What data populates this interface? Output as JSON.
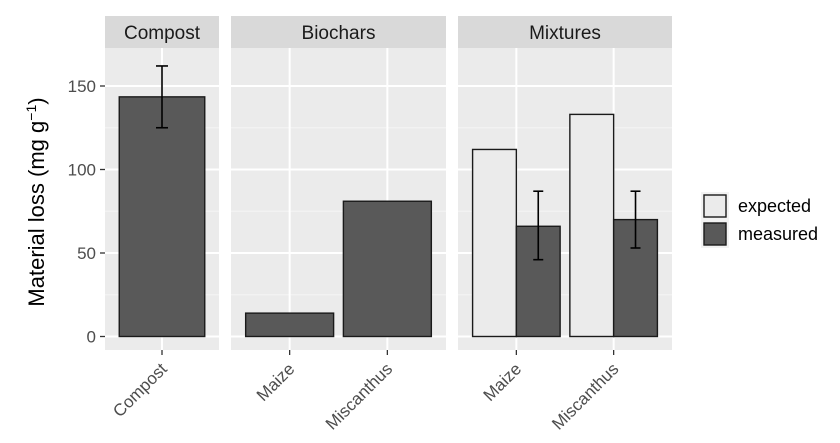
{
  "chart_data": {
    "type": "bar",
    "ylabel": "Material loss (mg g",
    "ylabel_superscript": "−1",
    "ylabel_close": ")",
    "ylim": [
      0,
      170
    ],
    "yticks": [
      "0",
      "50",
      "100",
      "150"
    ],
    "grid": true,
    "legend_position": "right",
    "series": [
      {
        "name": "expected",
        "color": "#ebebeb"
      },
      {
        "name": "measured",
        "color": "#595959"
      }
    ],
    "panels": [
      {
        "title": "Compost",
        "categories": [
          "Compost"
        ],
        "bars": [
          {
            "category": "Compost",
            "series": "measured",
            "value": 143.5,
            "err_low": 125,
            "err_high": 162
          }
        ]
      },
      {
        "title": "Biochars",
        "categories": [
          "Maize",
          "Miscanthus"
        ],
        "bars": [
          {
            "category": "Maize",
            "series": "measured",
            "value": 14
          },
          {
            "category": "Miscanthus",
            "series": "measured",
            "value": 81
          }
        ]
      },
      {
        "title": "Mixtures",
        "categories": [
          "Maize",
          "Miscanthus"
        ],
        "bars": [
          {
            "category": "Maize",
            "series": "expected",
            "value": 112
          },
          {
            "category": "Maize",
            "series": "measured",
            "value": 66,
            "err_low": 46,
            "err_high": 87
          },
          {
            "category": "Miscanthus",
            "series": "expected",
            "value": 133
          },
          {
            "category": "Miscanthus",
            "series": "measured",
            "value": 70,
            "err_low": 53,
            "err_high": 87
          }
        ]
      }
    ]
  }
}
